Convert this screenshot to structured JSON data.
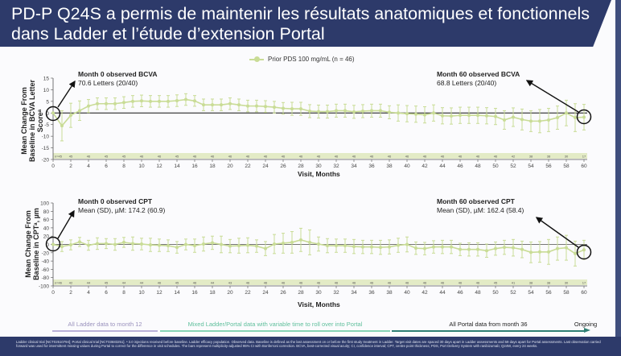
{
  "title": "PD-P Q24S a permis de maintenir les résultats anatomiques et fonctionnels dans Ladder et l’étude d’extension Portal",
  "legend": {
    "label": "Prior PDS 100 mg/mL (n = 46)",
    "color": "#c9dc96"
  },
  "annotations": {
    "bcva_m0_title": "Month 0 observed BCVA",
    "bcva_m0_value": "70.6 Letters (20/40)",
    "bcva_m60_title": "Month 60 observed BCVA",
    "bcva_m60_value": "68.8 Letters (20/40)",
    "cpt_m0_title": "Month 0 observed CPT",
    "cpt_m0_value": "Mean (SD), µM: 174.2 (60.9)",
    "cpt_m60_title": "Month 60 observed CPT",
    "cpt_m60_value": "Mean (SD), µM: 162.4 (58.4)"
  },
  "phases": [
    {
      "label": "All Ladder data to month 12",
      "color": "#b9b0d8"
    },
    {
      "label": "Mixed Ladder/Portal data with variable time to roll over into Portal",
      "color": "#86d3b6"
    },
    {
      "label": "All Portal data from month 36",
      "color": "#2f7f74"
    },
    {
      "label": "Ongoing",
      "color": "#2f7f74"
    }
  ],
  "footnote": "Ladder clinical trial [NCT02510794]; Portal clinical trial [NCT03683251]. ᵃ 3.0 injections received before baseline. Ladder efficacy population. Observed data. Baseline is defined as the last assessment on or before the first study treatment in Ladder. Target visit dates are spaced 30 days apart in Ladder assessments and 59 days apart for Portal assessments. Last observation carried forward was used for intermittent missing values during Portal to correct for the difference in visit schedules. The bars represent multiplicity-adjusted 95% CI with Bonferroni correction. BCVA, best-corrected visual acuity; CI, confidence interval; CPT, centre point thickness; PDS, Port Delivery System with ranibizumab; Q24W, every 24 weeks.",
  "chart_data": [
    {
      "type": "line",
      "title": "BCVA",
      "xlabel": "Visit, Months",
      "ylabel": "Mean Change From Baseline in BCVA Letter Scoreᵃ",
      "xlim": [
        0,
        60
      ],
      "ylim": [
        -20,
        15
      ],
      "yticks": [
        15,
        10,
        5,
        0,
        -5,
        -10,
        -15,
        -20
      ],
      "xticks": [
        0,
        2,
        4,
        6,
        8,
        10,
        12,
        14,
        16,
        18,
        20,
        22,
        24,
        26,
        28,
        30,
        32,
        34,
        36,
        38,
        40,
        42,
        44,
        46,
        48,
        50,
        52,
        54,
        56,
        58,
        60
      ],
      "series": [
        {
          "name": "Prior PDS 100 mg/mL (n = 46)",
          "x": [
            0,
            1,
            2,
            3,
            4,
            5,
            6,
            7,
            8,
            9,
            10,
            11,
            12,
            13,
            14,
            15,
            16,
            17,
            18,
            19,
            20,
            21,
            22,
            23,
            24,
            25,
            26,
            27,
            28,
            29,
            30,
            31,
            32,
            33,
            34,
            35,
            36,
            37,
            38,
            39,
            40,
            41,
            42,
            43,
            44,
            45,
            46,
            47,
            48,
            49,
            50,
            51,
            52,
            53,
            54,
            55,
            56,
            57,
            58,
            59,
            60
          ],
          "values": [
            0,
            -5.5,
            -1,
            1,
            3,
            4,
            4,
            4,
            4.5,
            5,
            5.2,
            5,
            5,
            5,
            5.3,
            5.8,
            5.2,
            3.5,
            3.5,
            3.5,
            4,
            3.5,
            3,
            3,
            2.8,
            2.5,
            2,
            1.8,
            1.8,
            0.8,
            0.6,
            0.6,
            1,
            1,
            0.5,
            0.8,
            1,
            1,
            0.3,
            0,
            -0.3,
            -0.5,
            -0.8,
            0,
            -1.2,
            -1.3,
            -1,
            -1,
            -1,
            -1.2,
            -1.5,
            -3,
            -1.8,
            -2.8,
            -3.5,
            -3.5,
            -3,
            -2,
            0,
            -2,
            -1.8
          ],
          "ci_halfwidth": [
            0,
            6.5,
            5.2,
            4.2,
            2.8,
            2.5,
            2.5,
            2.5,
            2.5,
            2.5,
            2.5,
            2.5,
            2.5,
            2.5,
            2.5,
            2.5,
            2.3,
            2.5,
            2.5,
            2.5,
            2.5,
            2.5,
            2.5,
            2.5,
            2.5,
            2.5,
            2.5,
            2.8,
            2.8,
            2.8,
            2.8,
            2.8,
            2.8,
            2.8,
            2.8,
            2.8,
            2.8,
            2.8,
            2.8,
            3.5,
            3.5,
            3.5,
            3.5,
            3.5,
            3.5,
            3.5,
            3.5,
            3.5,
            3.5,
            3.5,
            3.5,
            4,
            4,
            4.5,
            4.5,
            5,
            5,
            5,
            5.5,
            6,
            5.5
          ]
        }
      ],
      "n_at_risk": [
        "n=45",
        "45",
        "46",
        "45",
        "45",
        "46",
        "46",
        "45",
        "46",
        "46",
        "46",
        "46",
        "46",
        "46",
        "46",
        "46",
        "46",
        "46",
        "46",
        "46",
        "46",
        "46",
        "46",
        "46",
        "46",
        "46",
        "42",
        "38",
        "38",
        "30",
        "17"
      ]
    },
    {
      "type": "line",
      "title": "CPT",
      "xlabel": "Visit, Months",
      "ylabel": "Mean Change From Baseline in CPTᵃ, µm",
      "xlim": [
        0,
        60
      ],
      "ylim": [
        -100,
        100
      ],
      "yticks": [
        100,
        80,
        60,
        40,
        20,
        0,
        -20,
        -40,
        -60,
        -80,
        -100
      ],
      "xticks": [
        0,
        2,
        4,
        6,
        8,
        10,
        12,
        14,
        16,
        18,
        20,
        22,
        24,
        26,
        28,
        30,
        32,
        34,
        36,
        38,
        40,
        42,
        44,
        46,
        48,
        50,
        52,
        54,
        56,
        58,
        60
      ],
      "series": [
        {
          "name": "Prior PDS 100 mg/mL (n = 46)",
          "x": [
            0,
            1,
            2,
            3,
            4,
            5,
            6,
            7,
            8,
            9,
            10,
            11,
            12,
            13,
            14,
            15,
            16,
            17,
            18,
            19,
            20,
            21,
            22,
            23,
            24,
            25,
            26,
            27,
            28,
            29,
            30,
            31,
            32,
            33,
            34,
            35,
            36,
            37,
            38,
            39,
            40,
            41,
            42,
            43,
            44,
            45,
            46,
            47,
            48,
            49,
            50,
            51,
            52,
            53,
            54,
            55,
            56,
            57,
            58,
            59,
            60
          ],
          "values": [
            0,
            -5,
            -1,
            6,
            -2,
            2,
            2,
            0,
            5,
            2,
            1,
            -1,
            -2,
            -3,
            -7,
            0,
            -3,
            1,
            4,
            0,
            -4,
            -3,
            -2,
            -4,
            -10,
            1,
            3,
            5,
            11,
            5,
            1,
            -3,
            -3,
            -3,
            -5,
            -6,
            -6,
            -7,
            -6,
            -2,
            0,
            -9,
            -10,
            -6,
            -6,
            -6,
            -12,
            -12,
            -12,
            -15,
            -10,
            -7,
            -8,
            -12,
            -19,
            -18,
            -18,
            -10,
            -8,
            -22,
            -13
          ],
          "ci_halfwidth": [
            0,
            12,
            12,
            11,
            12,
            14,
            12,
            14,
            12,
            16,
            14,
            16,
            15,
            14,
            14,
            13,
            16,
            17,
            16,
            20,
            16,
            18,
            18,
            15,
            17,
            23,
            24,
            26,
            28,
            30,
            17,
            17,
            16,
            16,
            17,
            16,
            16,
            17,
            17,
            17,
            18,
            15,
            15,
            15,
            16,
            16,
            15,
            16,
            16,
            16,
            16,
            17,
            20,
            20,
            25,
            25,
            30,
            28,
            30,
            30,
            23
          ]
        }
      ],
      "n_at_risk": [
        "n=46",
        "42",
        "44",
        "45",
        "44",
        "44",
        "46",
        "45",
        "46",
        "44",
        "43",
        "46",
        "46",
        "46",
        "46",
        "46",
        "46",
        "46",
        "46",
        "46",
        "46",
        "46",
        "46",
        "46",
        "46",
        "45",
        "41",
        "38",
        "38",
        "30",
        "17"
      ]
    }
  ]
}
